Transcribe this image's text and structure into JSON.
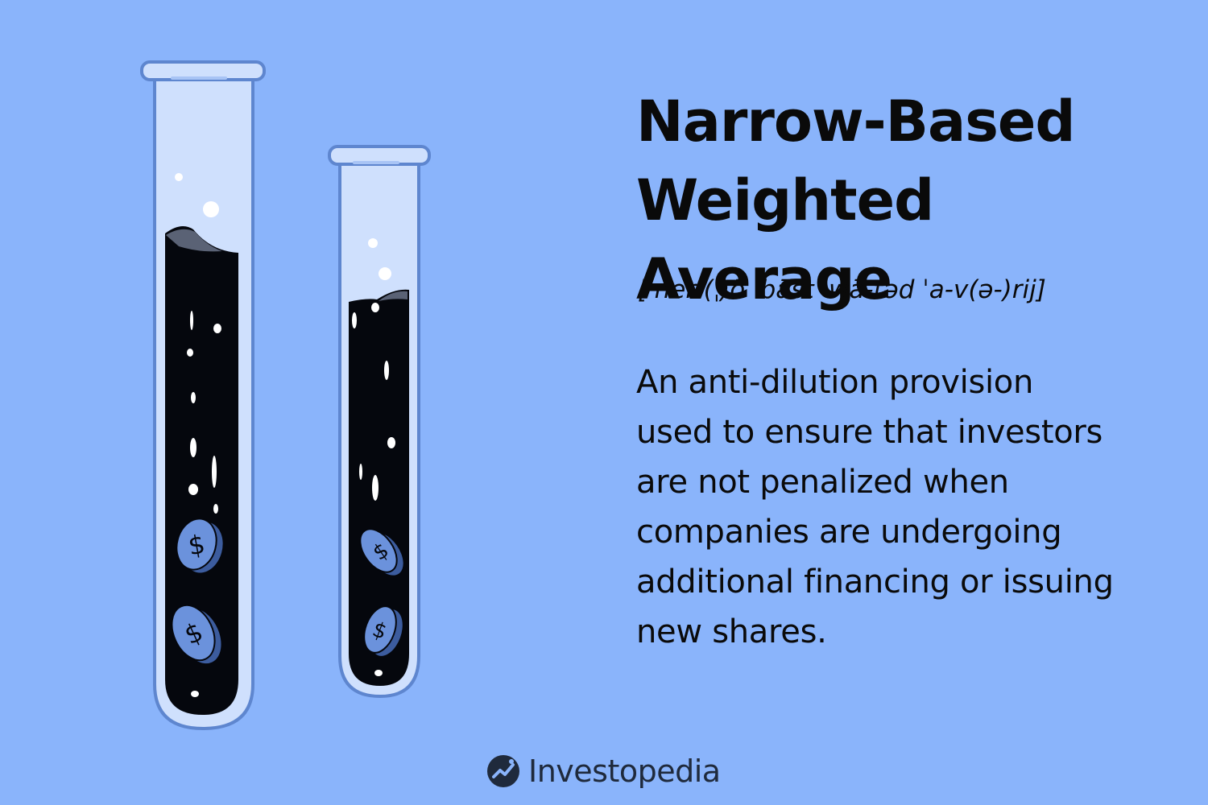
{
  "colors": {
    "background": "#8ab4fb",
    "tube_glass": "#cfe0fd",
    "tube_outline": "#5e86cf",
    "liquid": "#05070d",
    "coin": "#6b92dc",
    "text": "#0a0a0a",
    "logo": "#1f2a3c"
  },
  "title_lines": [
    "Narrow-Based",
    "Weighted Average"
  ],
  "pronunciation": "[ˈner-(ˌ)ō ˈbāst ˈwā-təd ˈa-v(ə-)rij]",
  "definition_lines": [
    "An anti-dilution provision",
    "used to ensure that investors",
    "are not penalized when",
    "companies are undergoing",
    "additional financing or issuing",
    "new shares."
  ],
  "brand": {
    "name": "Investopedia",
    "logo_icon": "investopedia-logo-icon"
  },
  "illustration": {
    "tubes": [
      "tall-test-tube",
      "short-test-tube"
    ],
    "coin_symbol": "$",
    "coin_count": 4
  }
}
